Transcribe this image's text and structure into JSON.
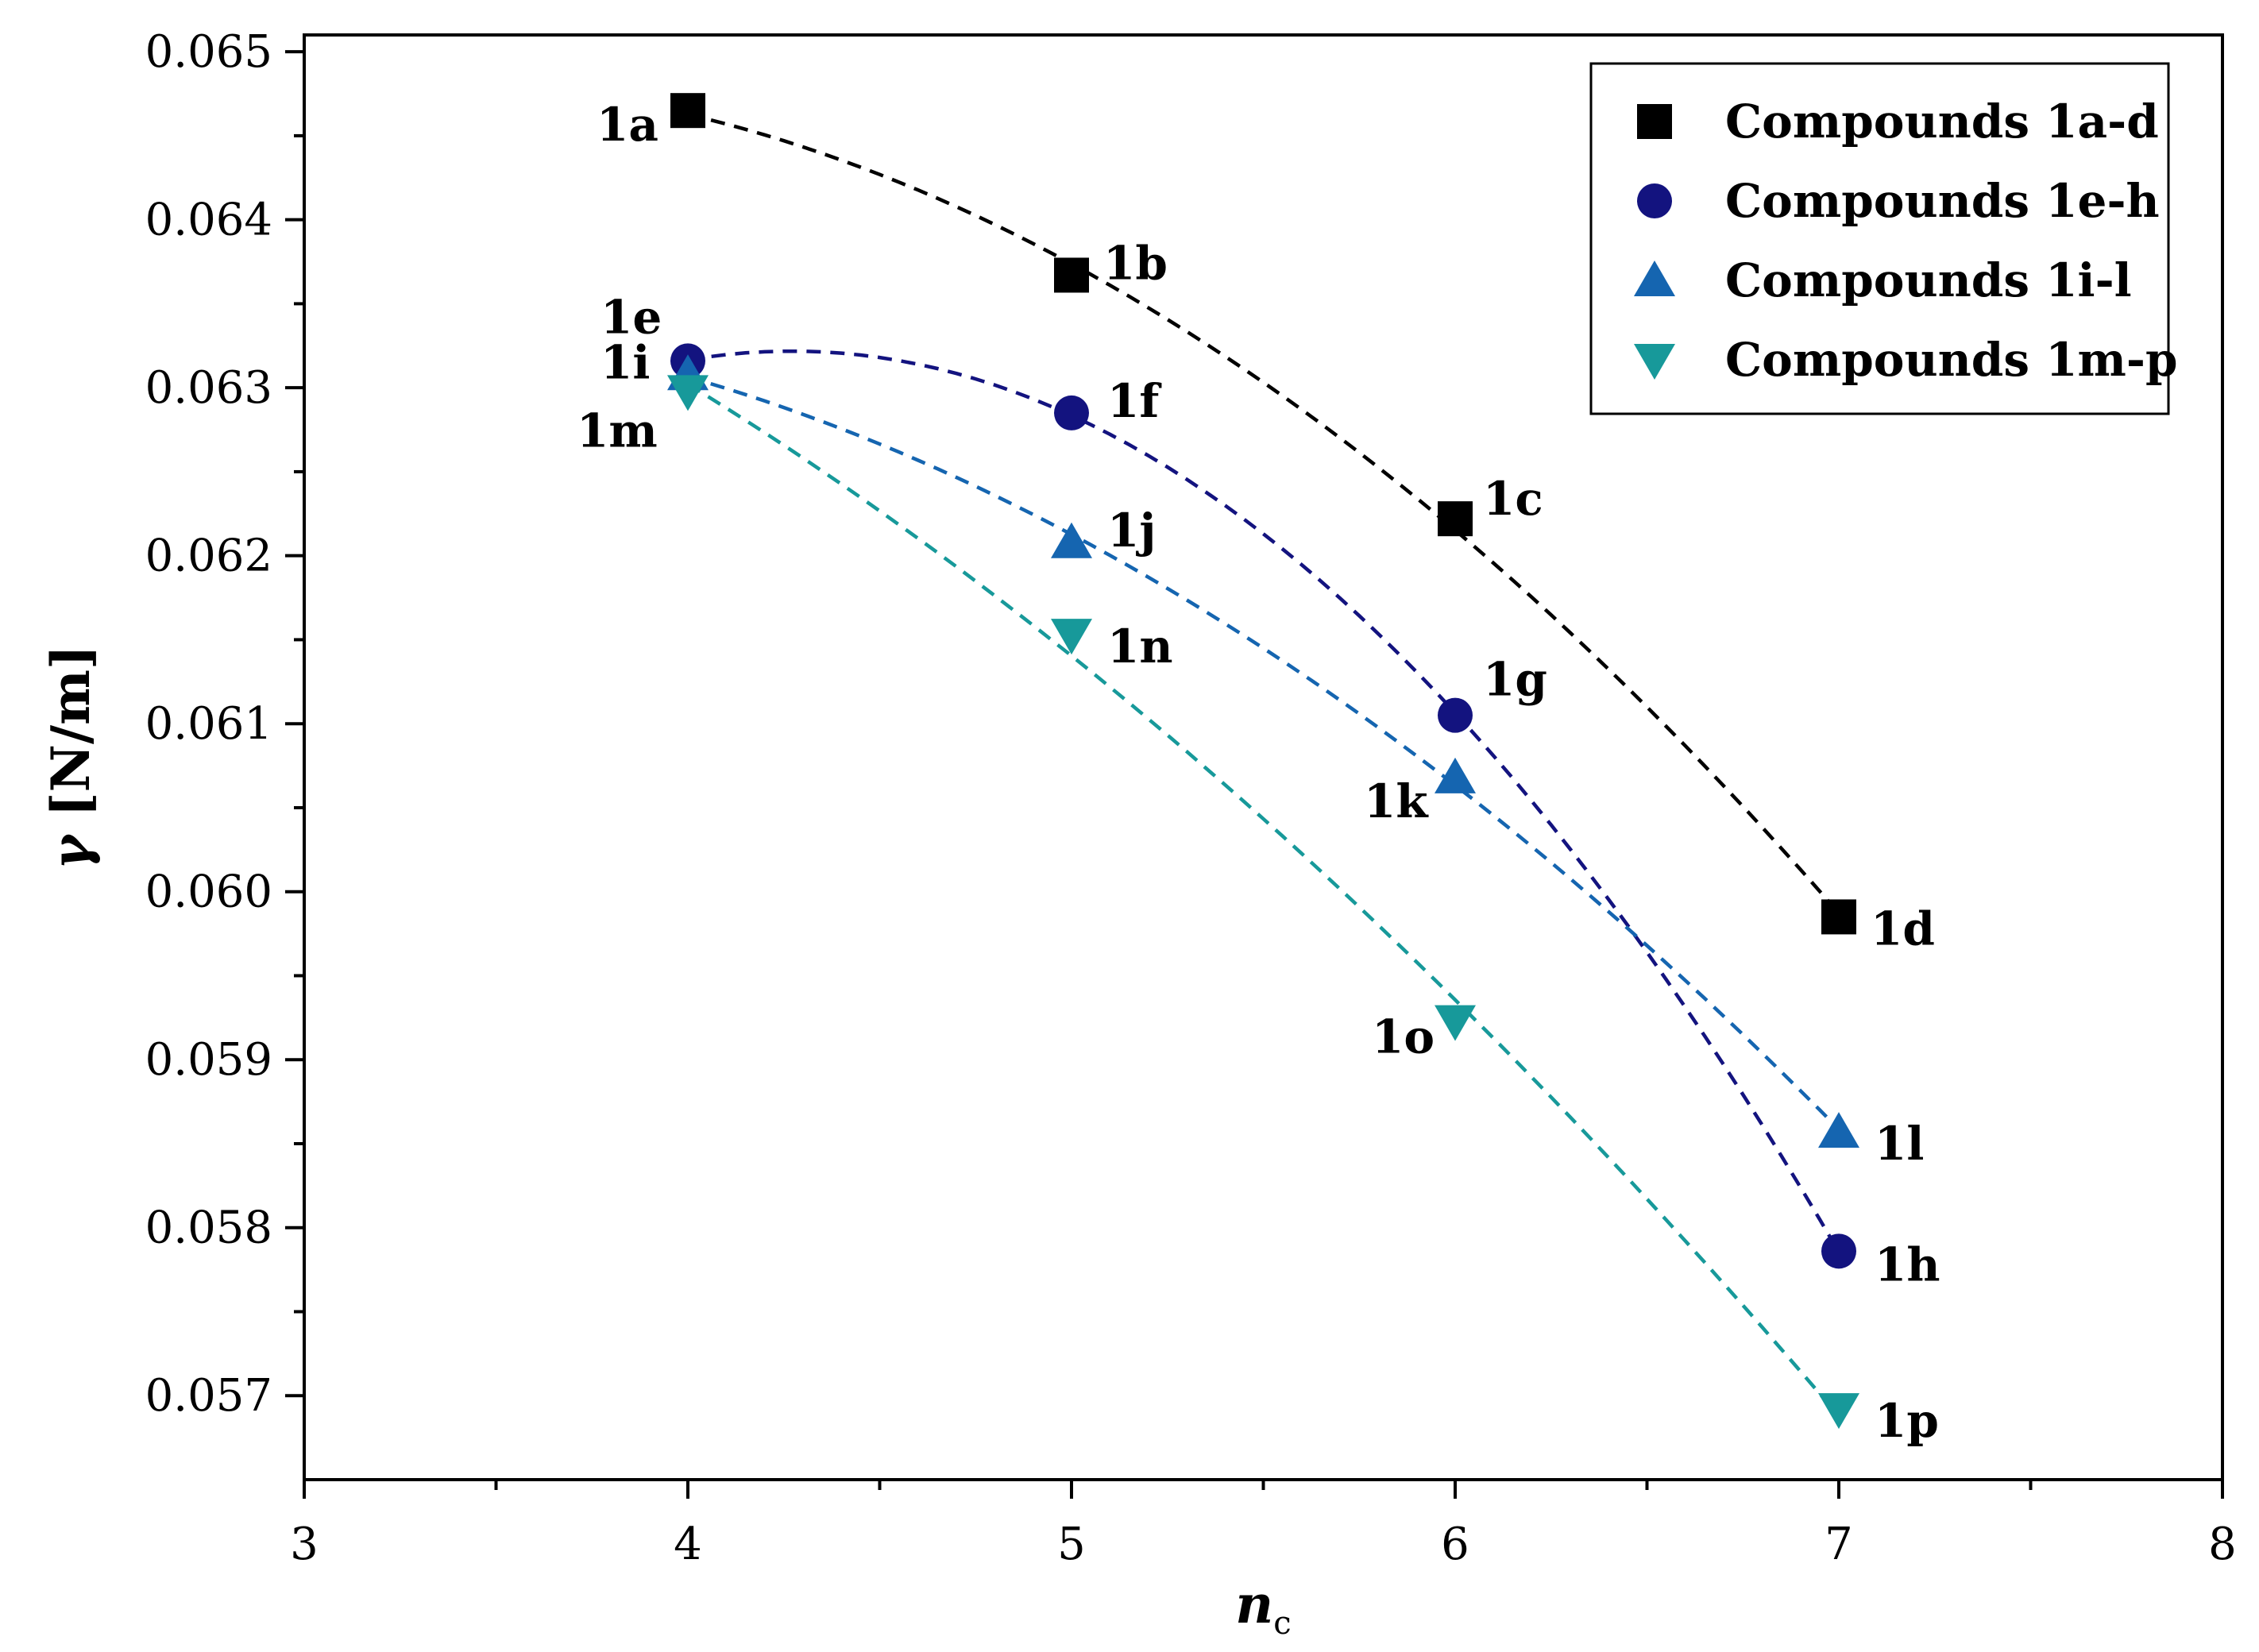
{
  "chart_data": {
    "type": "scatter",
    "xlabel": "n",
    "xlabel_sub": "c",
    "ylabel_symbol": "γ",
    "ylabel_unit": "[N/m]",
    "xlim": [
      3,
      8
    ],
    "ylim": [
      0.0565,
      0.0651
    ],
    "xticks": [
      3,
      4,
      5,
      6,
      7,
      8
    ],
    "xtick_labels": [
      "3",
      "4",
      "5",
      "6",
      "7",
      "8"
    ],
    "yticks": [
      0.057,
      0.058,
      0.059,
      0.06,
      0.061,
      0.062,
      0.063,
      0.064,
      0.065
    ],
    "ytick_labels": [
      "0.057",
      "0.058",
      "0.059",
      "0.060",
      "0.061",
      "0.062",
      "0.063",
      "0.064",
      "0.065"
    ],
    "grid": false,
    "legend_position": "top-right",
    "series": [
      {
        "name": "Compounds 1a-d",
        "color": "#000000",
        "marker": "square",
        "fit_line": "dashed",
        "x": [
          4,
          5,
          6,
          7
        ],
        "y": [
          0.06465,
          0.06367,
          0.06222,
          0.05985
        ],
        "labels": [
          "1a",
          "1b",
          "1c",
          "1d"
        ]
      },
      {
        "name": "Compounds 1e-h",
        "color": "#13137f",
        "marker": "circle",
        "fit_line": "dashed",
        "x": [
          4,
          5,
          6,
          7
        ],
        "y": [
          0.06316,
          0.06285,
          0.06105,
          0.05786
        ],
        "labels": [
          "1e",
          "1f",
          "1g",
          "1h"
        ]
      },
      {
        "name": "Compounds 1i-l",
        "color": "#1565b0",
        "marker": "triangle-up",
        "fit_line": "dashed",
        "x": [
          4,
          5,
          6,
          7
        ],
        "y": [
          0.06308,
          0.06208,
          0.06068,
          0.05857
        ],
        "labels": [
          "1i",
          "1j",
          "1k",
          "1l"
        ]
      },
      {
        "name": "Compounds 1m-p",
        "color": "#17999a",
        "marker": "triangle-down",
        "fit_line": "dashed",
        "x": [
          4,
          5,
          6,
          7
        ],
        "y": [
          0.06298,
          0.06153,
          0.05923,
          0.05692
        ],
        "labels": [
          "1m",
          "1n",
          "1o",
          "1p"
        ]
      }
    ]
  }
}
